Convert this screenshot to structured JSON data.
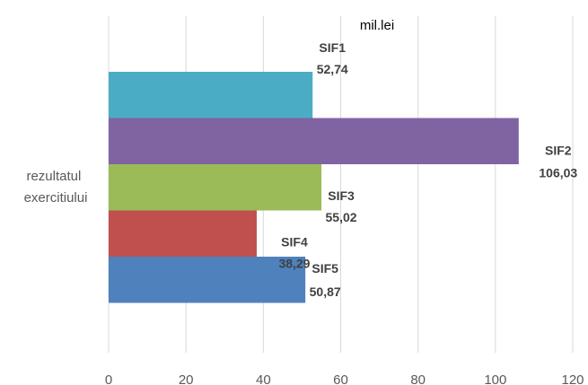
{
  "chart_data": {
    "type": "bar",
    "orientation": "horizontal",
    "title": "mil.lei",
    "categories": [
      "rezultatul exercitiului"
    ],
    "category_lines": [
      "rezultatul",
      "exercitiului"
    ],
    "series": [
      {
        "name": "SIF1",
        "values": [
          52.74
        ],
        "label": "52,74",
        "color": "#4BACC6"
      },
      {
        "name": "SIF2",
        "values": [
          106.03
        ],
        "label": "106,03",
        "color": "#8064A2"
      },
      {
        "name": "SIF3",
        "values": [
          55.02
        ],
        "label": "55,02",
        "color": "#9BBB59"
      },
      {
        "name": "SIF4",
        "values": [
          38.29
        ],
        "label": "38,29",
        "color": "#C0504D"
      },
      {
        "name": "SIF5",
        "values": [
          50.87
        ],
        "label": "50,87",
        "color": "#4F81BD"
      }
    ],
    "xlim": [
      0,
      120
    ],
    "xticks": [
      "0",
      "20",
      "40",
      "60",
      "80",
      "100",
      "120"
    ],
    "grid": true,
    "legend": "none"
  }
}
